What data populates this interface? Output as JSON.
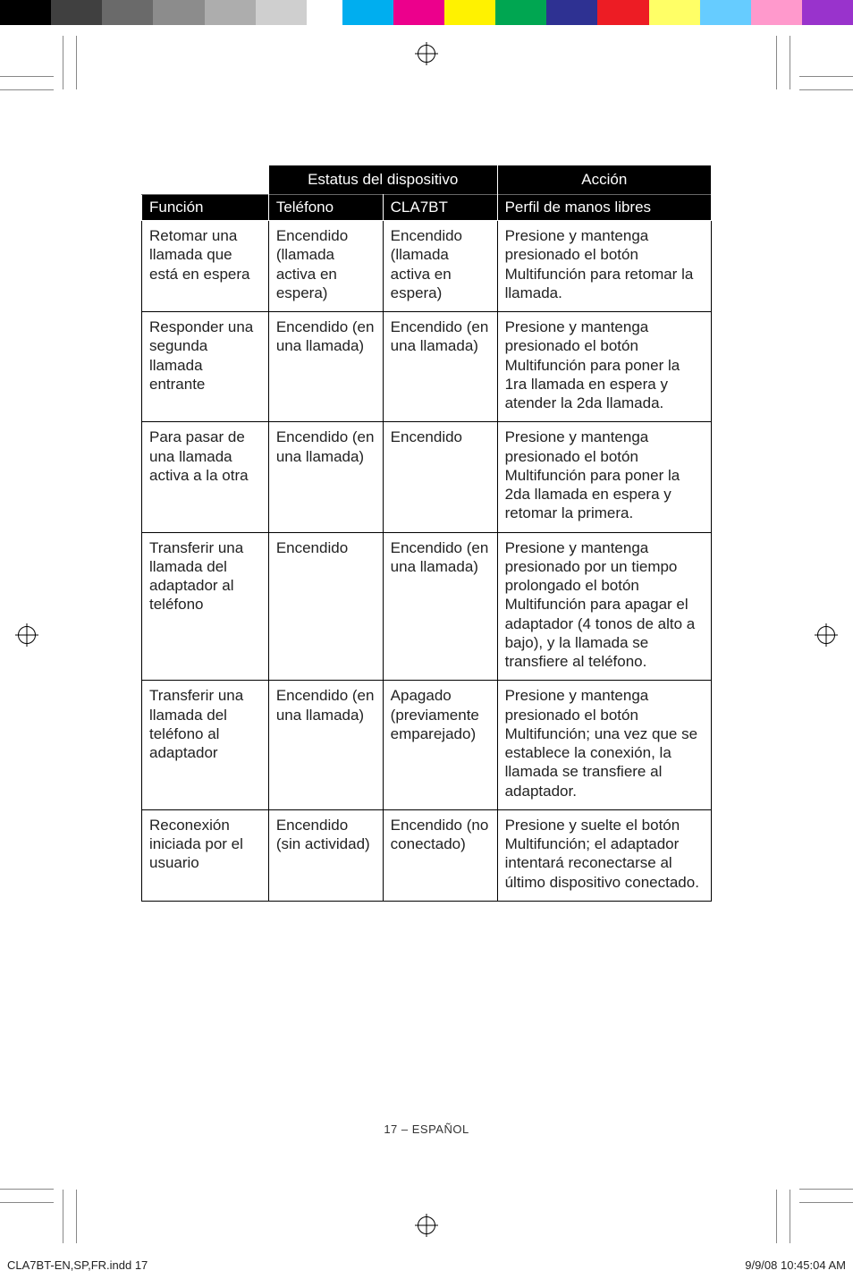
{
  "colorBar": {
    "left": [
      "#000000",
      "#404040",
      "#6a6a6a",
      "#8c8c8c",
      "#adadad",
      "#cfcfcf"
    ],
    "right": [
      "#00aeef",
      "#ec008c",
      "#fff200",
      "#00a651",
      "#2e3192",
      "#ed1c24",
      "#ffff66",
      "#66ccff",
      "#ff99cc",
      "#9933cc"
    ]
  },
  "header": {
    "estatus": "Estatus del dispositivo",
    "accion": "Acción",
    "funcion": "Función",
    "telefono": "Teléfono",
    "cla7bt": "CLA7BT",
    "perfil": "Perfil de manos libres"
  },
  "rows": [
    {
      "funcion": "Retomar una llamada que está en espera",
      "telefono": "Encendido (llamada activa en espera)",
      "cla7bt": "Encendido (llamada activa en espera)",
      "accion": "Presione y mantenga presionado el botón Multifunción para retomar la llamada."
    },
    {
      "funcion": "Responder una segunda llamada entrante",
      "telefono": "Encendido (en una llamada)",
      "cla7bt": "Encendido (en una llamada)",
      "accion": "Presione y mantenga presionado el botón Multifunción para poner la 1ra llamada en espera y atender la 2da llamada."
    },
    {
      "funcion": "Para pasar de una llamada activa a la otra",
      "telefono": "Encendido (en una llamada)",
      "cla7bt": "Encendido",
      "accion": "Presione y mantenga presionado el botón Multifunción para poner la 2da llamada en espera y retomar la primera."
    },
    {
      "funcion": "Transferir una llamada del adaptador al teléfono",
      "telefono": "Encendido",
      "cla7bt": "Encendido (en una llamada)",
      "accion": "Presione y mantenga presionado por un tiempo prolongado el botón Multifunción para apagar el adaptador (4 tonos de alto a bajo), y la llamada se transfiere al teléfono."
    },
    {
      "funcion": "Transferir una llamada del teléfono al adaptador",
      "telefono": "Encendido (en una llamada)",
      "cla7bt": "Apagado (previamente emparejado)",
      "accion": "Presione y mantenga presionado el botón Multifunción; una vez que se establece la conexión, la llamada se transfiere al adaptador."
    },
    {
      "funcion": "Reconexión iniciada por el usuario",
      "telefono": "Encendido (sin actividad)",
      "cla7bt": "Encendido (no conectado)",
      "accion": "Presione y suelte el botón Multifunción; el adaptador intentará reconectarse al último dispositivo conectado."
    }
  ],
  "pageNum": "17 – ESPAÑOL",
  "footer": {
    "left": "CLA7BT-EN,SP,FR.indd   17",
    "right": "9/9/08   10:45:04 AM"
  }
}
